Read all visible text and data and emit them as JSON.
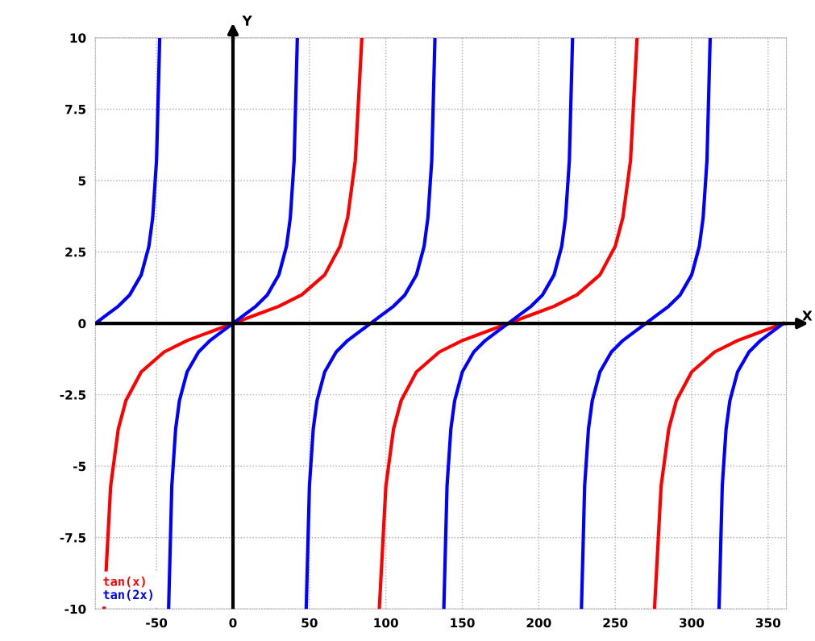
{
  "chart_data": {
    "type": "line",
    "xlabel": "X",
    "ylabel": "Y",
    "xlim": [
      -90,
      362
    ],
    "ylim": [
      -10,
      10
    ],
    "xticks": [
      -50,
      0,
      50,
      100,
      150,
      200,
      250,
      300,
      350
    ],
    "yticks": [
      -10,
      {
        "value": -7.5,
        "label": "-7.5"
      },
      -5,
      {
        "value": -2.5,
        "label": "-2.5"
      },
      0,
      {
        "value": 2.5,
        "label": "2.5"
      },
      5,
      {
        "value": 7.5,
        "label": "7.5"
      },
      10
    ],
    "grid": true,
    "legend": "bottom left",
    "marker": "none",
    "line_style": "solid",
    "series": [
      {
        "name": "tan(x)",
        "color": "#ff0000",
        "x": [
          -84.3,
          -80,
          -75,
          -70,
          -60,
          -45,
          -30,
          -15,
          0,
          15,
          30,
          45,
          60,
          70,
          75,
          80,
          84.3,
          90,
          95.7,
          100,
          105,
          110,
          120,
          135,
          150,
          165,
          180,
          195,
          210,
          225,
          240,
          250,
          255,
          260,
          264.3,
          270,
          275.7,
          280,
          285,
          290,
          300,
          315,
          330,
          345,
          360
        ],
        "values": [
          -10,
          -5.7,
          -3.7,
          -2.7,
          -1.7,
          -1,
          -0.6,
          -0.3,
          0,
          0.3,
          0.6,
          1,
          1.7,
          2.7,
          3.7,
          5.7,
          10,
          null,
          -10,
          -5.7,
          -3.7,
          -2.7,
          -1.7,
          -1,
          -0.6,
          -0.3,
          0,
          0.3,
          0.6,
          1,
          1.7,
          2.7,
          3.7,
          5.7,
          10,
          null,
          -10,
          -5.7,
          -3.7,
          -2.7,
          -1.7,
          -1,
          -0.6,
          -0.3,
          0
        ]
      },
      {
        "name": "tan(2x)",
        "color": "#0000ff",
        "x": [
          -90,
          -82.5,
          -75,
          -67.5,
          -60,
          -55,
          -52.5,
          -50,
          -47.9,
          -45,
          -42.1,
          -40,
          -37.5,
          -35,
          -30,
          -22.5,
          -15,
          -7.5,
          0,
          7.5,
          15,
          22.5,
          30,
          35,
          37.5,
          40,
          42.1,
          45,
          47.9,
          50,
          52.5,
          55,
          60,
          67.5,
          75,
          82.5,
          90,
          97.5,
          105,
          112.5,
          120,
          125,
          127.5,
          130,
          132.1,
          135,
          137.9,
          140,
          142.5,
          145,
          150,
          157.5,
          165,
          172.5,
          180,
          187.5,
          195,
          202.5,
          210,
          215,
          217.5,
          220,
          222.1,
          225,
          227.9,
          230,
          232.5,
          235,
          240,
          247.5,
          255,
          262.5,
          270,
          277.5,
          285,
          292.5,
          300,
          305,
          307.5,
          310,
          312.1,
          315,
          317.9,
          320,
          322.5,
          325,
          330,
          337.5,
          345,
          352.5,
          360
        ],
        "values": [
          0,
          0.3,
          0.6,
          1,
          1.7,
          2.7,
          3.7,
          5.7,
          10,
          null,
          -10,
          -5.7,
          -3.7,
          -2.7,
          -1.7,
          -1,
          -0.6,
          -0.3,
          0,
          0.3,
          0.6,
          1,
          1.7,
          2.7,
          3.7,
          5.7,
          10,
          null,
          -10,
          -5.7,
          -3.7,
          -2.7,
          -1.7,
          -1,
          -0.6,
          -0.3,
          0,
          0.3,
          0.6,
          1,
          1.7,
          2.7,
          3.7,
          5.7,
          10,
          null,
          -10,
          -5.7,
          -3.7,
          -2.7,
          -1.7,
          -1,
          -0.6,
          -0.3,
          0,
          0.3,
          0.6,
          1,
          1.7,
          2.7,
          3.7,
          5.7,
          10,
          null,
          -10,
          -5.7,
          -3.7,
          -2.7,
          -1.7,
          -1,
          -0.6,
          -0.3,
          0,
          0.3,
          0.6,
          1,
          1.7,
          2.7,
          3.7,
          5.7,
          10,
          null,
          -10,
          -5.7,
          -3.7,
          -2.7,
          -1.7,
          -1,
          -0.6,
          -0.3,
          0
        ]
      }
    ]
  }
}
